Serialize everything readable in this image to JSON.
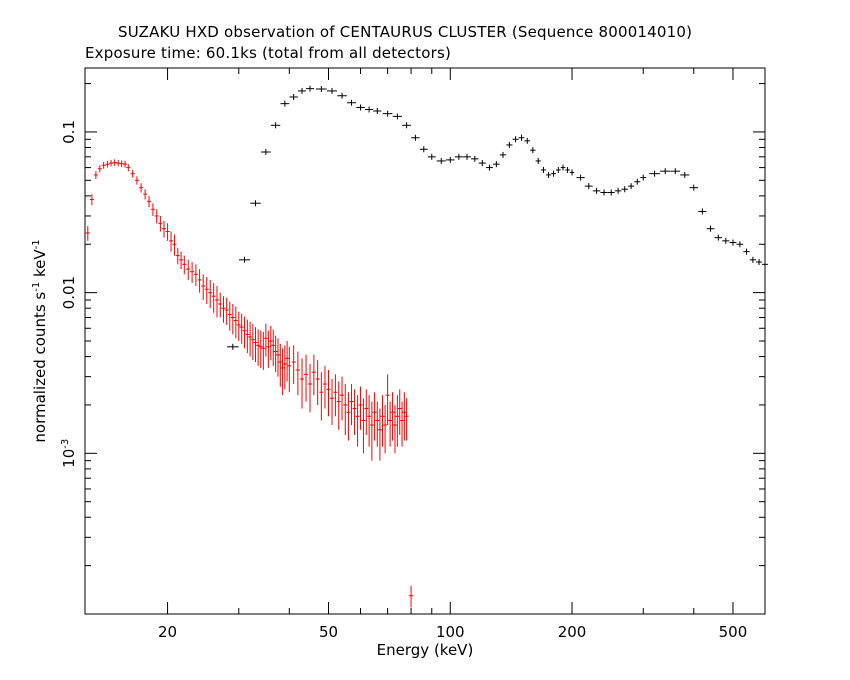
{
  "chart_data": {
    "type": "scatter",
    "title": "SUZAKU HXD observation of CENTAURUS CLUSTER (Sequence 800014010)",
    "subtitle": "Exposure time: 60.1ks (total from all detectors)",
    "xlabel": "Energy (keV)",
    "ylabel_main": "normalized counts s",
    "ylabel_mid": " keV",
    "ylabel_sup": "-1",
    "x_scale": "log",
    "y_scale": "log",
    "xlim": [
      12.5,
      600
    ],
    "ylim": [
      0.0001,
      0.25
    ],
    "x_ticks": [
      {
        "value": 20,
        "label": "20"
      },
      {
        "value": 50,
        "label": "50"
      },
      {
        "value": 100,
        "label": "100"
      },
      {
        "value": 200,
        "label": "200"
      },
      {
        "value": 500,
        "label": "500"
      }
    ],
    "y_ticks": [
      {
        "value": 0.1,
        "label": "0.1",
        "sup": ""
      },
      {
        "value": 0.01,
        "label": "0.01",
        "sup": ""
      },
      {
        "value": 0.001,
        "label": "10",
        "sup": "-3"
      }
    ],
    "grid": false,
    "legend": "none",
    "series": [
      {
        "color": "#ff0000",
        "label_marker": "plus",
        "points": [
          [
            12.7,
            0.0235,
            0.0025
          ],
          [
            13.0,
            0.038,
            0.003
          ],
          [
            13.3,
            0.054,
            0.003
          ],
          [
            13.6,
            0.059,
            0.003
          ],
          [
            13.9,
            0.062,
            0.003
          ],
          [
            14.2,
            0.063,
            0.003
          ],
          [
            14.5,
            0.064,
            0.003
          ],
          [
            14.8,
            0.0645,
            0.003
          ],
          [
            15.1,
            0.064,
            0.003
          ],
          [
            15.4,
            0.0635,
            0.003
          ],
          [
            15.7,
            0.063,
            0.003
          ],
          [
            16.0,
            0.06,
            0.003
          ],
          [
            16.4,
            0.055,
            0.003
          ],
          [
            16.8,
            0.05,
            0.003
          ],
          [
            17.2,
            0.045,
            0.003
          ],
          [
            17.6,
            0.041,
            0.003
          ],
          [
            18.0,
            0.037,
            0.003
          ],
          [
            18.4,
            0.033,
            0.003
          ],
          [
            18.8,
            0.03,
            0.003
          ],
          [
            19.2,
            0.027,
            0.003
          ],
          [
            19.6,
            0.025,
            0.003
          ],
          [
            20.0,
            0.024,
            0.003
          ],
          [
            20.4,
            0.021,
            0.003
          ],
          [
            20.8,
            0.02,
            0.003
          ],
          [
            21.2,
            0.017,
            0.002
          ],
          [
            21.6,
            0.016,
            0.002
          ],
          [
            22.0,
            0.015,
            0.002
          ],
          [
            22.5,
            0.014,
            0.002
          ],
          [
            23.0,
            0.0135,
            0.002
          ],
          [
            23.5,
            0.013,
            0.002
          ],
          [
            24.0,
            0.012,
            0.002
          ],
          [
            24.5,
            0.011,
            0.002
          ],
          [
            25.0,
            0.0105,
            0.002
          ],
          [
            25.5,
            0.01,
            0.002
          ],
          [
            26.0,
            0.0095,
            0.002
          ],
          [
            26.5,
            0.009,
            0.002
          ],
          [
            27.0,
            0.0085,
            0.0015
          ],
          [
            27.5,
            0.008,
            0.0015
          ],
          [
            28.0,
            0.0078,
            0.0015
          ],
          [
            28.5,
            0.0073,
            0.0015
          ],
          [
            29.0,
            0.007,
            0.0015
          ],
          [
            29.5,
            0.0067,
            0.0015
          ],
          [
            30.0,
            0.0063,
            0.0013
          ],
          [
            30.5,
            0.0061,
            0.0013
          ],
          [
            31.0,
            0.0058,
            0.0013
          ],
          [
            31.5,
            0.0055,
            0.0013
          ],
          [
            32.0,
            0.0053,
            0.0013
          ],
          [
            32.5,
            0.0051,
            0.0013
          ],
          [
            33.0,
            0.0049,
            0.0012
          ],
          [
            33.5,
            0.0047,
            0.0012
          ],
          [
            34.0,
            0.0046,
            0.0012
          ],
          [
            34.5,
            0.0045,
            0.0012
          ],
          [
            35.0,
            0.0052,
            0.0012
          ],
          [
            35.5,
            0.0046,
            0.0012
          ],
          [
            36.0,
            0.005,
            0.0012
          ],
          [
            36.5,
            0.0047,
            0.0012
          ],
          [
            37.0,
            0.0043,
            0.0011
          ],
          [
            37.5,
            0.0041,
            0.0011
          ],
          [
            38.0,
            0.0037,
            0.0011
          ],
          [
            38.5,
            0.0034,
            0.0011
          ],
          [
            39.0,
            0.0036,
            0.0011
          ],
          [
            39.5,
            0.0039,
            0.0011
          ],
          [
            40.0,
            0.0035,
            0.0011
          ],
          [
            41.0,
            0.0037,
            0.001
          ],
          [
            42.0,
            0.0033,
            0.001
          ],
          [
            43.0,
            0.0029,
            0.001
          ],
          [
            44.0,
            0.0031,
            0.001
          ],
          [
            45.0,
            0.0027,
            0.0009
          ],
          [
            46.0,
            0.0032,
            0.0009
          ],
          [
            47.0,
            0.0029,
            0.0009
          ],
          [
            48.0,
            0.0024,
            0.0008
          ],
          [
            49.0,
            0.0027,
            0.0008
          ],
          [
            50.0,
            0.0025,
            0.0008
          ],
          [
            51.0,
            0.0022,
            0.0007
          ],
          [
            52.0,
            0.0024,
            0.0007
          ],
          [
            53.0,
            0.0021,
            0.0007
          ],
          [
            54.0,
            0.0023,
            0.0007
          ],
          [
            55.0,
            0.002,
            0.0007
          ],
          [
            56.0,
            0.0018,
            0.0006
          ],
          [
            57.0,
            0.0021,
            0.0006
          ],
          [
            58.0,
            0.0019,
            0.0006
          ],
          [
            59.0,
            0.0017,
            0.0006
          ],
          [
            60.0,
            0.002,
            0.0006
          ],
          [
            61.0,
            0.0016,
            0.0006
          ],
          [
            62.0,
            0.0019,
            0.0006
          ],
          [
            63.0,
            0.0017,
            0.0006
          ],
          [
            64.0,
            0.0015,
            0.0006
          ],
          [
            65.0,
            0.0018,
            0.0006
          ],
          [
            66.0,
            0.0016,
            0.0005
          ],
          [
            67.0,
            0.0014,
            0.0005
          ],
          [
            68.0,
            0.0017,
            0.0006
          ],
          [
            69.0,
            0.0015,
            0.0005
          ],
          [
            70.0,
            0.0023,
            0.0008
          ],
          [
            71.0,
            0.0016,
            0.0005
          ],
          [
            72.0,
            0.0018,
            0.0006
          ],
          [
            73.0,
            0.0015,
            0.0005
          ],
          [
            74.0,
            0.0017,
            0.0006
          ],
          [
            75.0,
            0.0019,
            0.0006
          ],
          [
            76.0,
            0.0016,
            0.0005
          ],
          [
            77.0,
            0.0018,
            0.0006
          ],
          [
            78.0,
            0.0017,
            0.0005
          ],
          [
            80.0,
            0.00013,
            2e-05
          ]
        ]
      },
      {
        "color": "#000000",
        "label_marker": "plus",
        "points": [
          [
            29.0,
            0.0046,
            0.0
          ],
          [
            31.0,
            0.016,
            0.0
          ],
          [
            33.0,
            0.036,
            0.0
          ],
          [
            35.0,
            0.075,
            0.0
          ],
          [
            37.0,
            0.11,
            0.0
          ],
          [
            39.0,
            0.15,
            0.0
          ],
          [
            41.0,
            0.165,
            0.0
          ],
          [
            43.0,
            0.18,
            0.0
          ],
          [
            45.0,
            0.186,
            0.0
          ],
          [
            48.0,
            0.185,
            0.0
          ],
          [
            51.0,
            0.18,
            0.0
          ],
          [
            54.0,
            0.168,
            0.0
          ],
          [
            57.0,
            0.152,
            0.0
          ],
          [
            60.0,
            0.142,
            0.0
          ],
          [
            63.0,
            0.138,
            0.0
          ],
          [
            66.0,
            0.135,
            0.0
          ],
          [
            70.0,
            0.13,
            0.0
          ],
          [
            74.0,
            0.125,
            0.0
          ],
          [
            78.0,
            0.11,
            0.0
          ],
          [
            82.0,
            0.092,
            0.0
          ],
          [
            86.0,
            0.078,
            0.0
          ],
          [
            90.0,
            0.07,
            0.0
          ],
          [
            95.0,
            0.066,
            0.0
          ],
          [
            100.0,
            0.067,
            0.0
          ],
          [
            105.0,
            0.07,
            0.0
          ],
          [
            110.0,
            0.07,
            0.0
          ],
          [
            115.0,
            0.068,
            0.0
          ],
          [
            120.0,
            0.064,
            0.0
          ],
          [
            125.0,
            0.06,
            0.0
          ],
          [
            130.0,
            0.063,
            0.0
          ],
          [
            135.0,
            0.072,
            0.0
          ],
          [
            140.0,
            0.083,
            0.0
          ],
          [
            145.0,
            0.09,
            0.0
          ],
          [
            150.0,
            0.092,
            0.0
          ],
          [
            155.0,
            0.088,
            0.0
          ],
          [
            160.0,
            0.077,
            0.0
          ],
          [
            165.0,
            0.066,
            0.0
          ],
          [
            170.0,
            0.058,
            0.0
          ],
          [
            175.0,
            0.054,
            0.0
          ],
          [
            180.0,
            0.055,
            0.0
          ],
          [
            185.0,
            0.058,
            0.0
          ],
          [
            190.0,
            0.06,
            0.0
          ],
          [
            195.0,
            0.058,
            0.0
          ],
          [
            200.0,
            0.056,
            0.0
          ],
          [
            210.0,
            0.052,
            0.0
          ],
          [
            220.0,
            0.046,
            0.0
          ],
          [
            230.0,
            0.043,
            0.0
          ],
          [
            240.0,
            0.042,
            0.0
          ],
          [
            250.0,
            0.042,
            0.0
          ],
          [
            260.0,
            0.043,
            0.0
          ],
          [
            270.0,
            0.044,
            0.0
          ],
          [
            280.0,
            0.046,
            0.0
          ],
          [
            290.0,
            0.049,
            0.0
          ],
          [
            300.0,
            0.052,
            0.0
          ],
          [
            320.0,
            0.055,
            0.0
          ],
          [
            340.0,
            0.057,
            0.0
          ],
          [
            360.0,
            0.057,
            0.0
          ],
          [
            380.0,
            0.054,
            0.0
          ],
          [
            400.0,
            0.045,
            0.0
          ],
          [
            420.0,
            0.032,
            0.0
          ],
          [
            440.0,
            0.025,
            0.0
          ],
          [
            460.0,
            0.022,
            0.0
          ],
          [
            480.0,
            0.021,
            0.0
          ],
          [
            500.0,
            0.0205,
            0.0
          ],
          [
            520.0,
            0.02,
            0.0
          ],
          [
            540.0,
            0.018,
            0.0
          ],
          [
            560.0,
            0.016,
            0.0
          ],
          [
            580.0,
            0.0155,
            0.0
          ],
          [
            600.0,
            0.015,
            0.0
          ]
        ]
      }
    ]
  }
}
